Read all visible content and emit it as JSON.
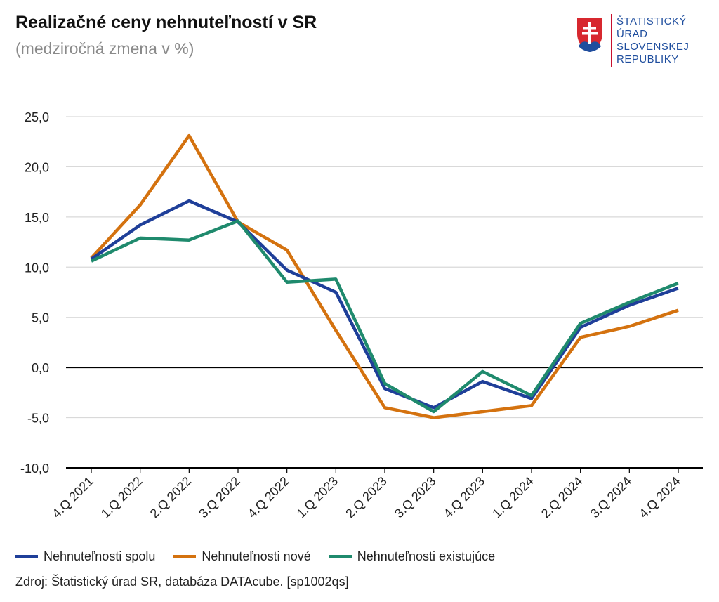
{
  "header": {
    "title": "Realizačné ceny nehnuteľností v SR",
    "subtitle": "(medziročná zmena v %)"
  },
  "logo": {
    "lines": [
      "ŠTATISTICKÝ",
      "ÚRAD",
      "SLOVENSKEJ",
      "REPUBLIKY"
    ],
    "icon": "slovak-coat-of-arms-icon"
  },
  "colors": {
    "spolu": "#1f3f99",
    "nove": "#d4720f",
    "existujuce": "#1f8a6d",
    "grid": "#d9d9d9",
    "zero": "#000000"
  },
  "chart_data": {
    "type": "line",
    "categories": [
      "4.Q 2021",
      "1.Q 2022",
      "2.Q 2022",
      "3.Q 2022",
      "4.Q 2022",
      "1.Q 2023",
      "2.Q 2023",
      "3.Q 2023",
      "4.Q 2023",
      "1.Q 2024",
      "2.Q 2024",
      "3.Q 2024",
      "4.Q 2024"
    ],
    "series": [
      {
        "name": "Nehnuteľnosti spolu",
        "color": "#1f3f99",
        "values": [
          10.8,
          14.2,
          16.6,
          14.5,
          9.7,
          7.5,
          -2.1,
          -4.0,
          -1.4,
          -3.1,
          4.0,
          6.2,
          7.9
        ]
      },
      {
        "name": "Nehnuteľnosti nové",
        "color": "#d4720f",
        "values": [
          10.9,
          16.2,
          23.1,
          14.5,
          11.7,
          3.7,
          -4.0,
          -5.0,
          -4.4,
          -3.8,
          3.0,
          4.1,
          5.7
        ]
      },
      {
        "name": "Nehnuteľnosti existujúce",
        "color": "#1f8a6d",
        "values": [
          10.6,
          12.9,
          12.7,
          14.6,
          8.5,
          8.8,
          -1.6,
          -4.4,
          -0.4,
          -2.8,
          4.4,
          6.5,
          8.4
        ]
      }
    ],
    "ylim": [
      -10,
      25
    ],
    "yticks": [
      25,
      20,
      15,
      10,
      5,
      0,
      -5,
      -10
    ],
    "ytick_labels": [
      "25,0",
      "20,0",
      "15,0",
      "10,0",
      "5,0",
      "0,0",
      "-5,0",
      "-10,0"
    ],
    "grid": true,
    "legend": "bottom"
  },
  "legend": {
    "items": [
      "Nehnuteľnosti spolu",
      "Nehnuteľnosti nové",
      "Nehnuteľnosti existujúce"
    ]
  },
  "source": "Zdroj: Štatistický úrad SR, databáza DATAcube. [sp1002qs]"
}
